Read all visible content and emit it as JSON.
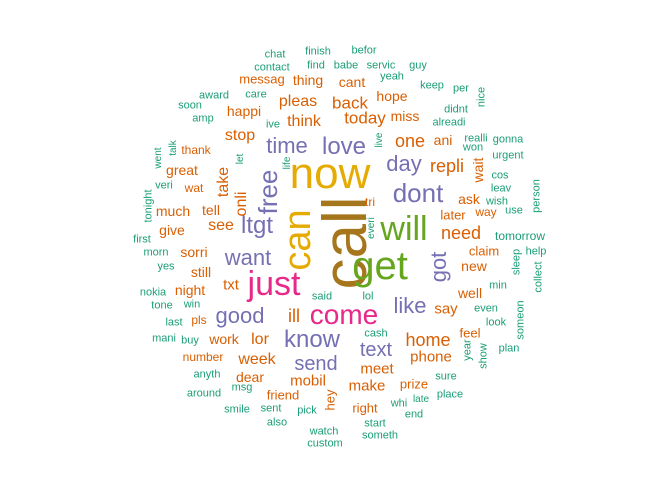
{
  "colors": {
    "green": "#1b9e77",
    "orange": "#d95f02",
    "purple": "#7570b3",
    "pink": "#e7298a",
    "lime": "#66a61e",
    "gold": "#e6ab02",
    "brown": "#a6761d"
  },
  "words": [
    {
      "text": "call",
      "color": "brown"
    },
    {
      "text": "now",
      "color": "gold"
    },
    {
      "text": "get",
      "color": "lime"
    },
    {
      "text": "will",
      "color": "lime"
    },
    {
      "text": "can",
      "color": "gold"
    },
    {
      "text": "just",
      "color": "pink"
    },
    {
      "text": "come",
      "color": "pink"
    },
    {
      "text": "dont",
      "color": "purple"
    },
    {
      "text": "free",
      "color": "purple"
    },
    {
      "text": "love",
      "color": "purple"
    },
    {
      "text": "know",
      "color": "purple"
    },
    {
      "text": "ltgt",
      "color": "purple"
    },
    {
      "text": "time",
      "color": "purple"
    },
    {
      "text": "day",
      "color": "purple"
    },
    {
      "text": "like",
      "color": "purple"
    },
    {
      "text": "want",
      "color": "purple"
    },
    {
      "text": "good",
      "color": "purple"
    },
    {
      "text": "got",
      "color": "purple"
    },
    {
      "text": "send",
      "color": "purple"
    },
    {
      "text": "text",
      "color": "purple"
    },
    {
      "text": "home",
      "color": "orange"
    },
    {
      "text": "need",
      "color": "orange"
    },
    {
      "text": "one",
      "color": "orange"
    },
    {
      "text": "repli",
      "color": "orange"
    },
    {
      "text": "today",
      "color": "orange"
    },
    {
      "text": "back",
      "color": "orange"
    },
    {
      "text": "think",
      "color": "orange"
    },
    {
      "text": "pleas",
      "color": "orange"
    },
    {
      "text": "stop",
      "color": "orange"
    },
    {
      "text": "see",
      "color": "orange"
    },
    {
      "text": "take",
      "color": "orange"
    },
    {
      "text": "onli",
      "color": "orange"
    },
    {
      "text": "ill",
      "color": "orange"
    },
    {
      "text": "lor",
      "color": "orange"
    },
    {
      "text": "week",
      "color": "orange"
    },
    {
      "text": "phone",
      "color": "orange"
    },
    {
      "text": "mobil",
      "color": "orange"
    },
    {
      "text": "make",
      "color": "orange"
    },
    {
      "text": "meet",
      "color": "orange"
    },
    {
      "text": "say",
      "color": "orange"
    },
    {
      "text": "new",
      "color": "orange"
    },
    {
      "text": "well",
      "color": "orange"
    },
    {
      "text": "sorri",
      "color": "orange"
    },
    {
      "text": "still",
      "color": "orange"
    },
    {
      "text": "txt",
      "color": "orange"
    },
    {
      "text": "tell",
      "color": "orange"
    },
    {
      "text": "great",
      "color": "orange"
    },
    {
      "text": "much",
      "color": "orange"
    },
    {
      "text": "give",
      "color": "orange"
    },
    {
      "text": "night",
      "color": "orange"
    },
    {
      "text": "work",
      "color": "orange"
    },
    {
      "text": "dear",
      "color": "orange"
    },
    {
      "text": "hey",
      "color": "orange"
    },
    {
      "text": "happi",
      "color": "orange"
    },
    {
      "text": "thing",
      "color": "orange"
    },
    {
      "text": "cant",
      "color": "orange"
    },
    {
      "text": "hope",
      "color": "orange"
    },
    {
      "text": "miss",
      "color": "orange"
    },
    {
      "text": "ani",
      "color": "orange"
    },
    {
      "text": "ask",
      "color": "orange"
    },
    {
      "text": "wait",
      "color": "orange"
    },
    {
      "text": "later",
      "color": "orange"
    },
    {
      "text": "claim",
      "color": "orange"
    },
    {
      "text": "feel",
      "color": "orange"
    },
    {
      "text": "prize",
      "color": "orange"
    },
    {
      "text": "right",
      "color": "orange"
    },
    {
      "text": "friend",
      "color": "orange"
    },
    {
      "text": "number",
      "color": "orange"
    },
    {
      "text": "messag",
      "color": "orange"
    },
    {
      "text": "thank",
      "color": "orange"
    },
    {
      "text": "wat",
      "color": "orange"
    },
    {
      "text": "pls",
      "color": "orange"
    },
    {
      "text": "tri",
      "color": "orange"
    },
    {
      "text": "way",
      "color": "orange"
    },
    {
      "text": "tomorrow",
      "color": "green"
    },
    {
      "text": "chat",
      "color": "green"
    },
    {
      "text": "finish",
      "color": "green"
    },
    {
      "text": "befor",
      "color": "green"
    },
    {
      "text": "contact",
      "color": "green"
    },
    {
      "text": "find",
      "color": "green"
    },
    {
      "text": "babe",
      "color": "green"
    },
    {
      "text": "servic",
      "color": "green"
    },
    {
      "text": "guy",
      "color": "green"
    },
    {
      "text": "yeah",
      "color": "green"
    },
    {
      "text": "keep",
      "color": "green"
    },
    {
      "text": "per",
      "color": "green"
    },
    {
      "text": "award",
      "color": "green"
    },
    {
      "text": "care",
      "color": "green"
    },
    {
      "text": "soon",
      "color": "green"
    },
    {
      "text": "ive",
      "color": "green"
    },
    {
      "text": "amp",
      "color": "green"
    },
    {
      "text": "didnt",
      "color": "green"
    },
    {
      "text": "alreadi",
      "color": "green"
    },
    {
      "text": "nice",
      "color": "green"
    },
    {
      "text": "realli",
      "color": "green"
    },
    {
      "text": "gonna",
      "color": "green"
    },
    {
      "text": "won",
      "color": "green"
    },
    {
      "text": "urgent",
      "color": "green"
    },
    {
      "text": "live",
      "color": "green"
    },
    {
      "text": "talk",
      "color": "green"
    },
    {
      "text": "went",
      "color": "green"
    },
    {
      "text": "let",
      "color": "green"
    },
    {
      "text": "life",
      "color": "green"
    },
    {
      "text": "cos",
      "color": "green"
    },
    {
      "text": "leav",
      "color": "green"
    },
    {
      "text": "wish",
      "color": "green"
    },
    {
      "text": "use",
      "color": "green"
    },
    {
      "text": "person",
      "color": "green"
    },
    {
      "text": "veri",
      "color": "green"
    },
    {
      "text": "tonight",
      "color": "green"
    },
    {
      "text": "first",
      "color": "green"
    },
    {
      "text": "morn",
      "color": "green"
    },
    {
      "text": "yes",
      "color": "green"
    },
    {
      "text": "everi",
      "color": "green"
    },
    {
      "text": "help",
      "color": "green"
    },
    {
      "text": "sleep",
      "color": "green"
    },
    {
      "text": "collect",
      "color": "green"
    },
    {
      "text": "nokia",
      "color": "green"
    },
    {
      "text": "tone",
      "color": "green"
    },
    {
      "text": "win",
      "color": "green"
    },
    {
      "text": "last",
      "color": "green"
    },
    {
      "text": "mani",
      "color": "green"
    },
    {
      "text": "buy",
      "color": "green"
    },
    {
      "text": "said",
      "color": "green"
    },
    {
      "text": "lol",
      "color": "green"
    },
    {
      "text": "min",
      "color": "green"
    },
    {
      "text": "even",
      "color": "green"
    },
    {
      "text": "look",
      "color": "green"
    },
    {
      "text": "someon",
      "color": "green"
    },
    {
      "text": "year",
      "color": "green"
    },
    {
      "text": "plan",
      "color": "green"
    },
    {
      "text": "show",
      "color": "green"
    },
    {
      "text": "cash",
      "color": "green"
    },
    {
      "text": "anyth",
      "color": "green"
    },
    {
      "text": "msg",
      "color": "green"
    },
    {
      "text": "around",
      "color": "green"
    },
    {
      "text": "sure",
      "color": "green"
    },
    {
      "text": "place",
      "color": "green"
    },
    {
      "text": "late",
      "color": "green"
    },
    {
      "text": "whi",
      "color": "green"
    },
    {
      "text": "smile",
      "color": "green"
    },
    {
      "text": "sent",
      "color": "green"
    },
    {
      "text": "pick",
      "color": "green"
    },
    {
      "text": "end",
      "color": "green"
    },
    {
      "text": "also",
      "color": "green"
    },
    {
      "text": "start",
      "color": "green"
    },
    {
      "text": "watch",
      "color": "green"
    },
    {
      "text": "someth",
      "color": "green"
    },
    {
      "text": "custom",
      "color": "green"
    }
  ]
}
